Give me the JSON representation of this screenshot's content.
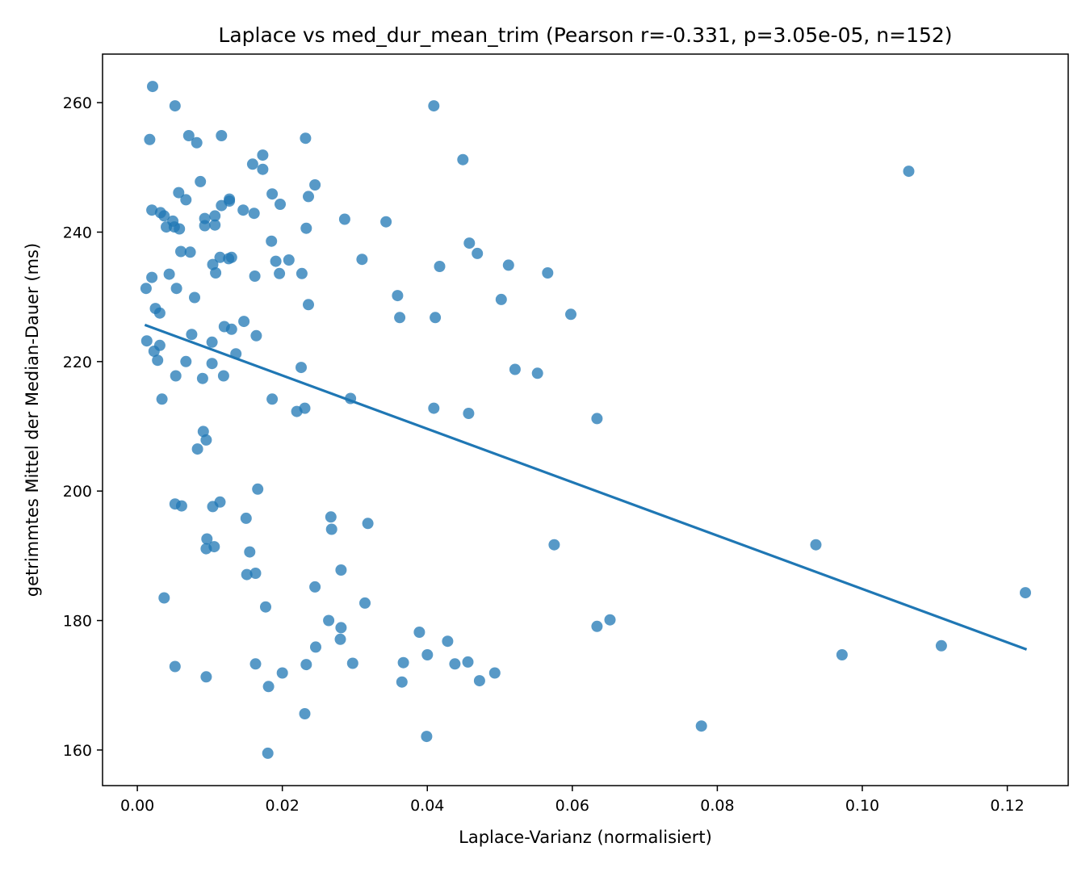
{
  "chart_data": {
    "type": "scatter",
    "title": "Laplace vs med_dur_mean_trim  (Pearson r=-0.331, p=3.05e-05, n=152)",
    "xlabel": "Laplace-Varianz (normalisiert)",
    "ylabel": "getrimmtes Mittel der Median-Dauer (ms)",
    "xlim": [
      -0.0048,
      0.1284
    ],
    "ylim": [
      154.5,
      267.5
    ],
    "xticks": [
      0.0,
      0.02,
      0.04,
      0.06,
      0.08,
      0.1,
      0.12
    ],
    "xtick_labels": [
      "0.00",
      "0.02",
      "0.04",
      "0.06",
      "0.08",
      "0.10",
      "0.12"
    ],
    "yticks": [
      160,
      180,
      200,
      220,
      240,
      260
    ],
    "ytick_labels": [
      "160",
      "180",
      "200",
      "220",
      "240",
      "260"
    ],
    "grid": false,
    "colors": {
      "points": "#1f77b4",
      "fit_line": "#1f77b4"
    },
    "fit_line": {
      "x": [
        0.0012,
        0.1225
      ],
      "y": [
        225.6,
        175.6
      ]
    },
    "points": [
      [
        0.0021,
        262.5
      ],
      [
        0.0052,
        259.5
      ],
      [
        0.0409,
        259.5
      ],
      [
        0.0017,
        254.3
      ],
      [
        0.0071,
        254.9
      ],
      [
        0.0116,
        254.9
      ],
      [
        0.0232,
        254.5
      ],
      [
        0.0082,
        253.8
      ],
      [
        0.0173,
        251.9
      ],
      [
        0.0449,
        251.2
      ],
      [
        0.0159,
        250.5
      ],
      [
        0.0173,
        249.7
      ],
      [
        0.1064,
        249.4
      ],
      [
        0.0087,
        247.8
      ],
      [
        0.0245,
        247.3
      ],
      [
        0.0057,
        246.1
      ],
      [
        0.0186,
        245.9
      ],
      [
        0.0127,
        245.1
      ],
      [
        0.0127,
        244.8
      ],
      [
        0.0067,
        245.0
      ],
      [
        0.0236,
        245.5
      ],
      [
        0.0197,
        244.3
      ],
      [
        0.0116,
        244.1
      ],
      [
        0.002,
        243.4
      ],
      [
        0.0146,
        243.4
      ],
      [
        0.0032,
        243.0
      ],
      [
        0.0037,
        242.5
      ],
      [
        0.0107,
        242.5
      ],
      [
        0.0161,
        242.9
      ],
      [
        0.0093,
        242.1
      ],
      [
        0.0286,
        242.0
      ],
      [
        0.0343,
        241.6
      ],
      [
        0.0049,
        241.7
      ],
      [
        0.004,
        240.8
      ],
      [
        0.0051,
        240.8
      ],
      [
        0.0058,
        240.5
      ],
      [
        0.0093,
        241.0
      ],
      [
        0.0107,
        241.1
      ],
      [
        0.0233,
        240.6
      ],
      [
        0.0185,
        238.6
      ],
      [
        0.0458,
        238.3
      ],
      [
        0.0469,
        236.7
      ],
      [
        0.006,
        237.0
      ],
      [
        0.0073,
        236.9
      ],
      [
        0.0114,
        236.1
      ],
      [
        0.0126,
        235.9
      ],
      [
        0.013,
        236.1
      ],
      [
        0.0191,
        235.5
      ],
      [
        0.0209,
        235.7
      ],
      [
        0.031,
        235.8
      ],
      [
        0.0104,
        235.0
      ],
      [
        0.0417,
        234.7
      ],
      [
        0.0512,
        234.9
      ],
      [
        0.0044,
        233.5
      ],
      [
        0.0108,
        233.7
      ],
      [
        0.0162,
        233.2
      ],
      [
        0.0196,
        233.6
      ],
      [
        0.0227,
        233.6
      ],
      [
        0.0566,
        233.7
      ],
      [
        0.002,
        233.0
      ],
      [
        0.0012,
        231.3
      ],
      [
        0.0054,
        231.3
      ],
      [
        0.0359,
        230.2
      ],
      [
        0.0502,
        229.6
      ],
      [
        0.0079,
        229.9
      ],
      [
        0.0236,
        228.8
      ],
      [
        0.0025,
        228.2
      ],
      [
        0.0031,
        227.5
      ],
      [
        0.0362,
        226.8
      ],
      [
        0.0411,
        226.8
      ],
      [
        0.0598,
        227.3
      ],
      [
        0.0147,
        226.2
      ],
      [
        0.012,
        225.4
      ],
      [
        0.013,
        225.0
      ],
      [
        0.0075,
        224.2
      ],
      [
        0.0164,
        224.0
      ],
      [
        0.0013,
        223.2
      ],
      [
        0.0103,
        223.0
      ],
      [
        0.0031,
        222.5
      ],
      [
        0.0023,
        221.6
      ],
      [
        0.0136,
        221.2
      ],
      [
        0.0028,
        220.2
      ],
      [
        0.0067,
        220.0
      ],
      [
        0.0103,
        219.7
      ],
      [
        0.0226,
        219.1
      ],
      [
        0.0521,
        218.8
      ],
      [
        0.0552,
        218.2
      ],
      [
        0.0053,
        217.8
      ],
      [
        0.0119,
        217.8
      ],
      [
        0.009,
        217.4
      ],
      [
        0.0034,
        214.2
      ],
      [
        0.0186,
        214.2
      ],
      [
        0.0294,
        214.3
      ],
      [
        0.0231,
        212.8
      ],
      [
        0.022,
        212.3
      ],
      [
        0.0409,
        212.8
      ],
      [
        0.0457,
        212.0
      ],
      [
        0.0634,
        211.2
      ],
      [
        0.0091,
        209.2
      ],
      [
        0.0095,
        207.9
      ],
      [
        0.0083,
        206.5
      ],
      [
        0.0166,
        200.3
      ],
      [
        0.0114,
        198.3
      ],
      [
        0.0052,
        198.0
      ],
      [
        0.0061,
        197.7
      ],
      [
        0.0104,
        197.6
      ],
      [
        0.015,
        195.8
      ],
      [
        0.0267,
        196.0
      ],
      [
        0.0268,
        194.1
      ],
      [
        0.0318,
        195.0
      ],
      [
        0.0096,
        192.6
      ],
      [
        0.0106,
        191.4
      ],
      [
        0.0095,
        191.1
      ],
      [
        0.0155,
        190.6
      ],
      [
        0.0575,
        191.7
      ],
      [
        0.0936,
        191.7
      ],
      [
        0.0151,
        187.1
      ],
      [
        0.0163,
        187.3
      ],
      [
        0.0281,
        187.8
      ],
      [
        0.0245,
        185.2
      ],
      [
        0.0037,
        183.5
      ],
      [
        0.0177,
        182.1
      ],
      [
        0.0314,
        182.7
      ],
      [
        0.1225,
        184.3
      ],
      [
        0.0264,
        180.0
      ],
      [
        0.0281,
        178.9
      ],
      [
        0.0389,
        178.2
      ],
      [
        0.0634,
        179.1
      ],
      [
        0.0652,
        180.1
      ],
      [
        0.028,
        177.1
      ],
      [
        0.0428,
        176.8
      ],
      [
        0.0246,
        175.9
      ],
      [
        0.1109,
        176.1
      ],
      [
        0.04,
        174.7
      ],
      [
        0.0972,
        174.7
      ],
      [
        0.0052,
        172.9
      ],
      [
        0.0163,
        173.3
      ],
      [
        0.0233,
        173.2
      ],
      [
        0.0297,
        173.4
      ],
      [
        0.0367,
        173.5
      ],
      [
        0.0438,
        173.3
      ],
      [
        0.0456,
        173.6
      ],
      [
        0.0095,
        171.3
      ],
      [
        0.02,
        171.9
      ],
      [
        0.0493,
        171.9
      ],
      [
        0.0365,
        170.5
      ],
      [
        0.0472,
        170.7
      ],
      [
        0.0181,
        169.8
      ],
      [
        0.0231,
        165.6
      ],
      [
        0.0399,
        162.1
      ],
      [
        0.0778,
        163.7
      ],
      [
        0.018,
        159.5
      ]
    ]
  }
}
